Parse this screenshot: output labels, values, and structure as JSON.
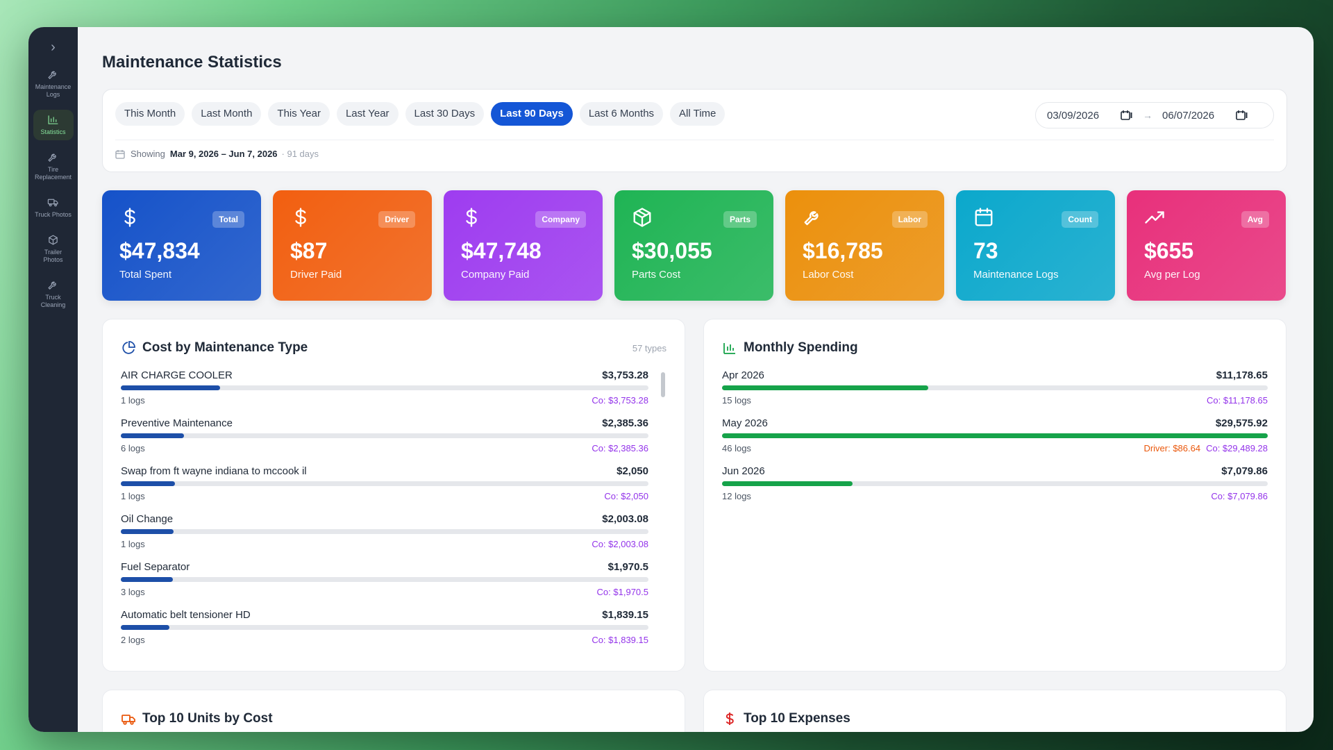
{
  "sidebar": {
    "toggle": "›",
    "items": [
      {
        "label": "Maintenance Logs",
        "icon": "wrench-icon",
        "active": false
      },
      {
        "label": "Statistics",
        "icon": "bar-chart-icon",
        "active": true
      },
      {
        "label": "Tire Replacement",
        "icon": "wrench-icon",
        "active": false
      },
      {
        "label": "Truck Photos",
        "icon": "truck-icon",
        "active": false
      },
      {
        "label": "Trailer Photos",
        "icon": "trailer-icon",
        "active": false
      },
      {
        "label": "Truck Cleaning",
        "icon": "wrench-icon",
        "active": false
      }
    ]
  },
  "header": {
    "title": "Maintenance Statistics"
  },
  "filters": {
    "pills": [
      "This Month",
      "Last Month",
      "This Year",
      "Last Year",
      "Last 30 Days",
      "Last 90 Days",
      "Last 6 Months",
      "All Time"
    ],
    "active": "Last 90 Days",
    "start_date": "03/09/2026",
    "end_date": "06/07/2026",
    "showing_label": "Showing",
    "showing_range": "Mar 9, 2026 – Jun 7, 2026",
    "showing_days": "· 91 days"
  },
  "kpis": [
    {
      "badge": "Total",
      "value": "$47,834",
      "label": "Total Spent",
      "icon": "dollar-icon",
      "color": "#1552c9"
    },
    {
      "badge": "Driver",
      "value": "$87",
      "label": "Driver Paid",
      "icon": "dollar-icon",
      "color": "#f25f10"
    },
    {
      "badge": "Company",
      "value": "$47,748",
      "label": "Company Paid",
      "icon": "dollar-icon",
      "color": "#9e3cf0"
    },
    {
      "badge": "Parts",
      "value": "$30,055",
      "label": "Parts Cost",
      "icon": "box-icon",
      "color": "#1fb454"
    },
    {
      "badge": "Labor",
      "value": "$16,785",
      "label": "Labor Cost",
      "icon": "wrench-icon",
      "color": "#ec900c"
    },
    {
      "badge": "Count",
      "value": "73",
      "label": "Maintenance Logs",
      "icon": "calendar-icon",
      "color": "#0ba8cc"
    },
    {
      "badge": "Avg",
      "value": "$655",
      "label": "Avg per Log",
      "icon": "trending-up-icon",
      "color": "#e8307b"
    }
  ],
  "cost_by_type": {
    "title": "Cost by Maintenance Type",
    "meta": "57 types",
    "bar_color": "#1d4fa8",
    "items": [
      {
        "name": "AIR CHARGE COOLER",
        "amount": "$3,753.28",
        "logs": "1 logs",
        "co": "Co: $3,753.28",
        "value": 3753.28
      },
      {
        "name": "Preventive Maintenance",
        "amount": "$2,385.36",
        "logs": "6 logs",
        "co": "Co: $2,385.36",
        "value": 2385.36
      },
      {
        "name": "Swap from ft wayne indiana to mccook il",
        "amount": "$2,050",
        "logs": "1 logs",
        "co": "Co: $2,050",
        "value": 2050
      },
      {
        "name": "Oil Change",
        "amount": "$2,003.08",
        "logs": "1 logs",
        "co": "Co: $2,003.08",
        "value": 2003.08
      },
      {
        "name": "Fuel Separator",
        "amount": "$1,970.5",
        "logs": "3 logs",
        "co": "Co: $1,970.5",
        "value": 1970.5
      },
      {
        "name": "Automatic belt tensioner HD",
        "amount": "$1,839.15",
        "logs": "2 logs",
        "co": "Co: $1,839.15",
        "value": 1839.15
      }
    ]
  },
  "monthly": {
    "title": "Monthly Spending",
    "bar_color": "#16a34a",
    "items": [
      {
        "name": "Apr 2026",
        "amount": "$11,178.65",
        "logs": "15 logs",
        "driver": "",
        "co": "Co: $11,178.65",
        "value": 11178.65
      },
      {
        "name": "May 2026",
        "amount": "$29,575.92",
        "logs": "46 logs",
        "driver": "Driver: $86.64",
        "co": "Co: $29,489.28",
        "value": 29575.92
      },
      {
        "name": "Jun 2026",
        "amount": "$7,079.86",
        "logs": "12 logs",
        "driver": "",
        "co": "Co: $7,079.86",
        "value": 7079.86
      }
    ]
  },
  "bottom": {
    "left_title": "Top 10 Units by Cost",
    "right_title": "Top 10 Expenses"
  }
}
